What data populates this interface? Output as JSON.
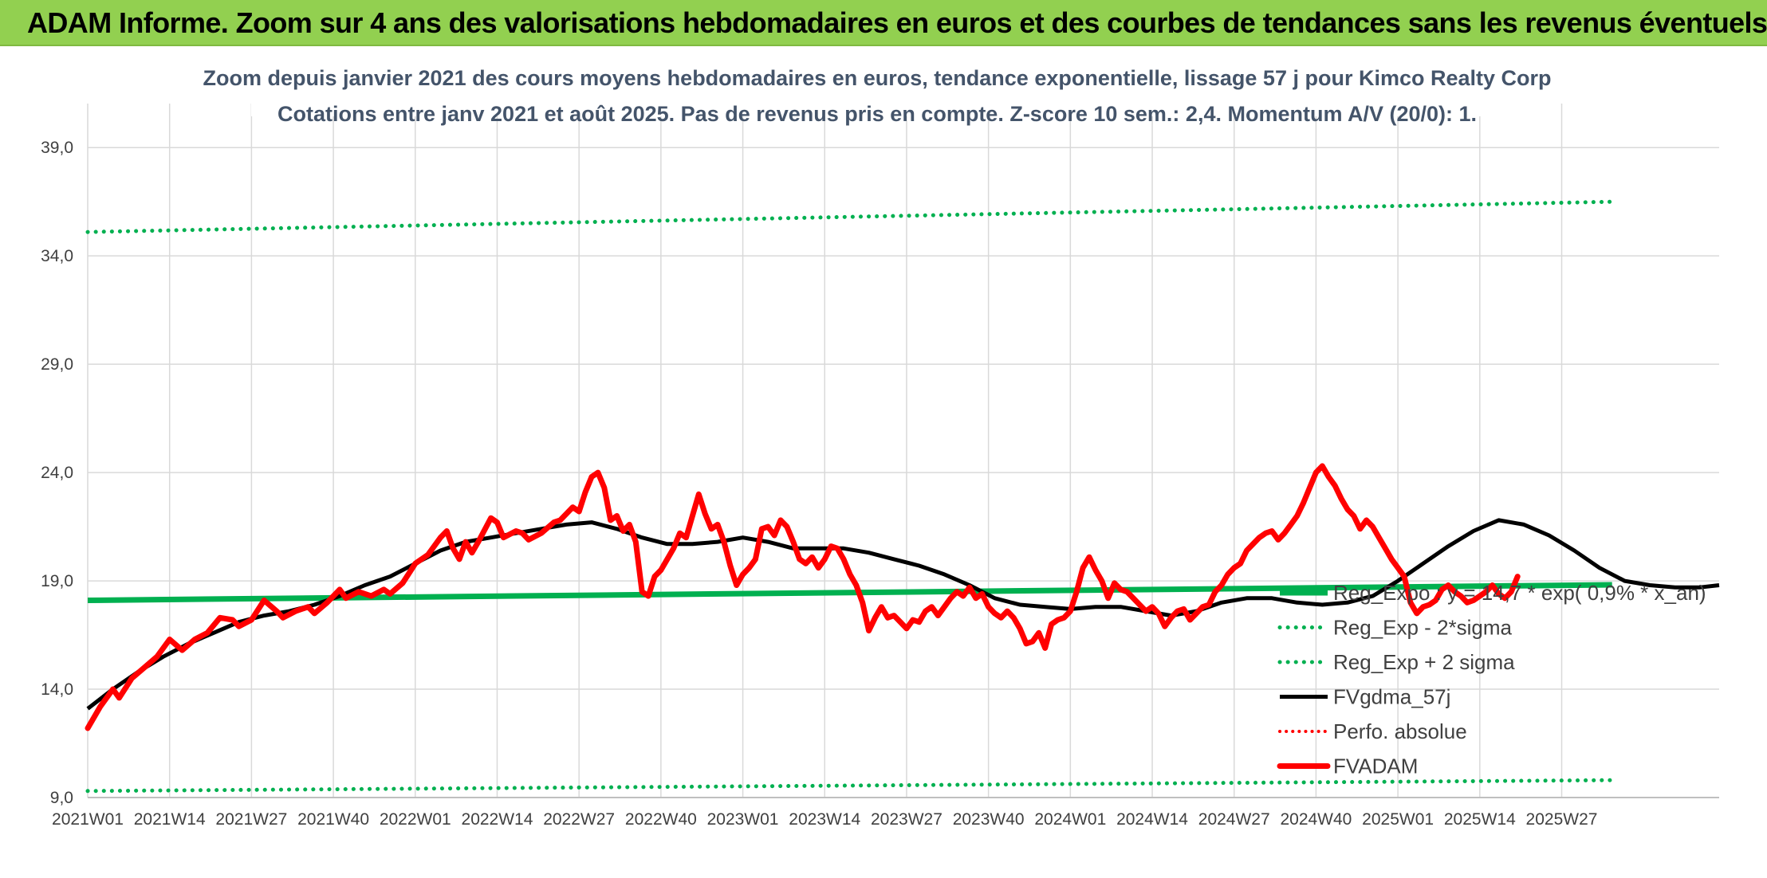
{
  "banner": {
    "title": "ADAM Informe. Zoom sur 4 ans des valorisations hebdomadaires en euros et des courbes de tendances sans les revenus éventuels"
  },
  "colors": {
    "banner": "#92d050",
    "green": "#00b050",
    "black": "#000000",
    "red": "#ff0000",
    "title": "#44546a"
  },
  "chart_data": {
    "type": "line",
    "title": "Zoom depuis janvier 2021 des cours moyens hebdomadaires en euros, tendance exponentielle, lissage 57 j pour Kimco Realty Corp",
    "subtitle": "Cotations entre janv 2021 et août 2025. Pas de revenus pris en compte. Z-score 10 sem.: 2,4. Momentum A/V (20/0): 1.",
    "y_ticks": [
      "9,0",
      "14,0",
      "19,0",
      "24,0",
      "29,0",
      "34,0",
      "39,0"
    ],
    "ylim": [
      9,
      40
    ],
    "grid": true,
    "legend_position": "bottom-right",
    "x_categories": [
      "2021W01",
      "2021W14",
      "2021W27",
      "2021W40",
      "2022W01",
      "2022W14",
      "2022W27",
      "2022W40",
      "2023W01",
      "2023W14",
      "2023W27",
      "2023W40",
      "2024W01",
      "2024W14",
      "2024W27",
      "2024W40",
      "2025W01",
      "2025W14",
      "2025W27"
    ],
    "series": [
      {
        "name": "Reg_Expo : y = 14,7 * exp( 0,9% * x_an)",
        "style": "solid-green",
        "points": [
          [
            0,
            18.1
          ],
          [
            242,
            18.82
          ]
        ]
      },
      {
        "name": "Reg_Exp - 2*sigma",
        "style": "dotted-green",
        "points": [
          [
            0,
            9.3
          ],
          [
            242,
            9.8
          ]
        ]
      },
      {
        "name": "Reg_Exp + 2 sigma",
        "style": "dotted-green",
        "points": [
          [
            0,
            35.1
          ],
          [
            242,
            36.5
          ]
        ]
      },
      {
        "name": "FVgdma_57j",
        "style": "solid-black",
        "points": [
          [
            0,
            13.1
          ],
          [
            4,
            14.0
          ],
          [
            8,
            14.8
          ],
          [
            12,
            15.5
          ],
          [
            16,
            16.1
          ],
          [
            20,
            16.6
          ],
          [
            24,
            17.1
          ],
          [
            28,
            17.4
          ],
          [
            32,
            17.6
          ],
          [
            36,
            17.9
          ],
          [
            40,
            18.3
          ],
          [
            44,
            18.8
          ],
          [
            48,
            19.2
          ],
          [
            52,
            19.8
          ],
          [
            56,
            20.4
          ],
          [
            60,
            20.8
          ],
          [
            64,
            21.0
          ],
          [
            68,
            21.2
          ],
          [
            72,
            21.4
          ],
          [
            76,
            21.6
          ],
          [
            80,
            21.7
          ],
          [
            84,
            21.4
          ],
          [
            88,
            21.0
          ],
          [
            92,
            20.7
          ],
          [
            96,
            20.7
          ],
          [
            100,
            20.8
          ],
          [
            104,
            21.0
          ],
          [
            108,
            20.8
          ],
          [
            112,
            20.5
          ],
          [
            116,
            20.5
          ],
          [
            120,
            20.5
          ],
          [
            124,
            20.3
          ],
          [
            128,
            20.0
          ],
          [
            132,
            19.7
          ],
          [
            136,
            19.3
          ],
          [
            140,
            18.8
          ],
          [
            144,
            18.2
          ],
          [
            148,
            17.9
          ],
          [
            152,
            17.8
          ],
          [
            156,
            17.7
          ],
          [
            160,
            17.8
          ],
          [
            164,
            17.8
          ],
          [
            168,
            17.6
          ],
          [
            172,
            17.4
          ],
          [
            176,
            17.6
          ],
          [
            180,
            18.0
          ],
          [
            184,
            18.2
          ],
          [
            188,
            18.2
          ],
          [
            192,
            18.0
          ],
          [
            196,
            17.9
          ],
          [
            200,
            18.0
          ],
          [
            204,
            18.3
          ],
          [
            208,
            19.0
          ],
          [
            212,
            19.8
          ],
          [
            216,
            20.6
          ],
          [
            220,
            21.3
          ],
          [
            224,
            21.8
          ],
          [
            228,
            21.6
          ],
          [
            232,
            21.1
          ],
          [
            236,
            20.4
          ],
          [
            240,
            19.6
          ],
          [
            244,
            19.0
          ],
          [
            248,
            18.8
          ],
          [
            252,
            18.7
          ],
          [
            256,
            18.7
          ],
          [
            259,
            18.8
          ]
        ]
      },
      {
        "name": "Perfo. absolue",
        "style": "dotted-red",
        "points": []
      },
      {
        "name": "FVADAM",
        "style": "solid-red",
        "points": [
          [
            0,
            12.2
          ],
          [
            2,
            13.2
          ],
          [
            4,
            14.0
          ],
          [
            5,
            13.6
          ],
          [
            7,
            14.5
          ],
          [
            9,
            15.0
          ],
          [
            11,
            15.5
          ],
          [
            13,
            16.3
          ],
          [
            15,
            15.8
          ],
          [
            17,
            16.3
          ],
          [
            19,
            16.6
          ],
          [
            21,
            17.3
          ],
          [
            23,
            17.2
          ],
          [
            24,
            16.9
          ],
          [
            26,
            17.2
          ],
          [
            28,
            18.1
          ],
          [
            30,
            17.6
          ],
          [
            31,
            17.3
          ],
          [
            33,
            17.6
          ],
          [
            35,
            17.8
          ],
          [
            36,
            17.5
          ],
          [
            38,
            18.0
          ],
          [
            40,
            18.6
          ],
          [
            41,
            18.2
          ],
          [
            43,
            18.5
          ],
          [
            45,
            18.3
          ],
          [
            47,
            18.6
          ],
          [
            48,
            18.4
          ],
          [
            50,
            18.9
          ],
          [
            52,
            19.8
          ],
          [
            54,
            20.2
          ],
          [
            56,
            21.0
          ],
          [
            57,
            21.3
          ],
          [
            58,
            20.5
          ],
          [
            59,
            20.0
          ],
          [
            60,
            20.8
          ],
          [
            61,
            20.3
          ],
          [
            62,
            20.8
          ],
          [
            64,
            21.9
          ],
          [
            65,
            21.7
          ],
          [
            66,
            21.0
          ],
          [
            68,
            21.3
          ],
          [
            69,
            21.2
          ],
          [
            70,
            20.9
          ],
          [
            72,
            21.2
          ],
          [
            74,
            21.7
          ],
          [
            75,
            21.8
          ],
          [
            77,
            22.4
          ],
          [
            78,
            22.2
          ],
          [
            79,
            23.1
          ],
          [
            80,
            23.8
          ],
          [
            81,
            24.0
          ],
          [
            82,
            23.3
          ],
          [
            83,
            21.8
          ],
          [
            84,
            22.0
          ],
          [
            85,
            21.3
          ],
          [
            86,
            21.6
          ],
          [
            87,
            20.8
          ],
          [
            88,
            18.5
          ],
          [
            89,
            18.3
          ],
          [
            90,
            19.2
          ],
          [
            91,
            19.5
          ],
          [
            92,
            20.0
          ],
          [
            93,
            20.5
          ],
          [
            94,
            21.2
          ],
          [
            95,
            21.0
          ],
          [
            96,
            22.0
          ],
          [
            97,
            23.0
          ],
          [
            98,
            22.1
          ],
          [
            99,
            21.4
          ],
          [
            100,
            21.6
          ],
          [
            101,
            20.8
          ],
          [
            102,
            19.7
          ],
          [
            103,
            18.8
          ],
          [
            104,
            19.3
          ],
          [
            105,
            19.6
          ],
          [
            106,
            20.0
          ],
          [
            107,
            21.4
          ],
          [
            108,
            21.5
          ],
          [
            109,
            21.1
          ],
          [
            110,
            21.8
          ],
          [
            111,
            21.5
          ],
          [
            112,
            20.8
          ],
          [
            113,
            20.0
          ],
          [
            114,
            19.8
          ],
          [
            115,
            20.1
          ],
          [
            116,
            19.6
          ],
          [
            117,
            20.0
          ],
          [
            118,
            20.6
          ],
          [
            119,
            20.5
          ],
          [
            120,
            20.0
          ],
          [
            121,
            19.3
          ],
          [
            122,
            18.8
          ],
          [
            123,
            18.0
          ],
          [
            124,
            16.7
          ],
          [
            125,
            17.3
          ],
          [
            126,
            17.8
          ],
          [
            127,
            17.3
          ],
          [
            128,
            17.4
          ],
          [
            129,
            17.1
          ],
          [
            130,
            16.8
          ],
          [
            131,
            17.2
          ],
          [
            132,
            17.1
          ],
          [
            133,
            17.6
          ],
          [
            134,
            17.8
          ],
          [
            135,
            17.4
          ],
          [
            136,
            17.8
          ],
          [
            137,
            18.2
          ],
          [
            138,
            18.5
          ],
          [
            139,
            18.3
          ],
          [
            140,
            18.7
          ],
          [
            141,
            18.2
          ],
          [
            142,
            18.4
          ],
          [
            143,
            17.8
          ],
          [
            144,
            17.5
          ],
          [
            145,
            17.3
          ],
          [
            146,
            17.6
          ],
          [
            147,
            17.3
          ],
          [
            148,
            16.8
          ],
          [
            149,
            16.1
          ],
          [
            150,
            16.2
          ],
          [
            151,
            16.6
          ],
          [
            152,
            15.9
          ],
          [
            153,
            17.0
          ],
          [
            154,
            17.2
          ],
          [
            155,
            17.3
          ],
          [
            156,
            17.6
          ],
          [
            157,
            18.5
          ],
          [
            158,
            19.6
          ],
          [
            159,
            20.1
          ],
          [
            160,
            19.5
          ],
          [
            161,
            19.0
          ],
          [
            162,
            18.2
          ],
          [
            163,
            18.9
          ],
          [
            164,
            18.6
          ],
          [
            165,
            18.5
          ],
          [
            166,
            18.2
          ],
          [
            167,
            17.9
          ],
          [
            168,
            17.6
          ],
          [
            169,
            17.8
          ],
          [
            170,
            17.5
          ],
          [
            171,
            16.9
          ],
          [
            172,
            17.3
          ],
          [
            173,
            17.6
          ],
          [
            174,
            17.7
          ],
          [
            175,
            17.2
          ],
          [
            176,
            17.5
          ],
          [
            177,
            17.8
          ],
          [
            178,
            17.9
          ],
          [
            179,
            18.5
          ],
          [
            180,
            18.8
          ],
          [
            181,
            19.3
          ],
          [
            182,
            19.6
          ],
          [
            183,
            19.8
          ],
          [
            184,
            20.4
          ],
          [
            185,
            20.7
          ],
          [
            186,
            21.0
          ],
          [
            187,
            21.2
          ],
          [
            188,
            21.3
          ],
          [
            189,
            20.9
          ],
          [
            190,
            21.2
          ],
          [
            191,
            21.6
          ],
          [
            192,
            22.0
          ],
          [
            193,
            22.6
          ],
          [
            194,
            23.3
          ],
          [
            195,
            24.0
          ],
          [
            196,
            24.3
          ],
          [
            197,
            23.8
          ],
          [
            198,
            23.4
          ],
          [
            199,
            22.8
          ],
          [
            200,
            22.3
          ],
          [
            201,
            22.0
          ],
          [
            202,
            21.4
          ],
          [
            203,
            21.8
          ],
          [
            204,
            21.5
          ],
          [
            205,
            21.0
          ],
          [
            206,
            20.5
          ],
          [
            207,
            20.0
          ],
          [
            208,
            19.6
          ],
          [
            209,
            19.2
          ],
          [
            210,
            18.0
          ],
          [
            211,
            17.5
          ],
          [
            212,
            17.8
          ],
          [
            213,
            17.9
          ],
          [
            214,
            18.1
          ],
          [
            215,
            18.6
          ],
          [
            216,
            18.8
          ],
          [
            217,
            18.5
          ],
          [
            218,
            18.3
          ],
          [
            219,
            18.0
          ],
          [
            220,
            18.1
          ],
          [
            221,
            18.3
          ],
          [
            222,
            18.5
          ],
          [
            223,
            18.8
          ],
          [
            224,
            18.4
          ],
          [
            225,
            18.2
          ],
          [
            226,
            18.5
          ],
          [
            227,
            19.2
          ]
        ]
      }
    ]
  }
}
